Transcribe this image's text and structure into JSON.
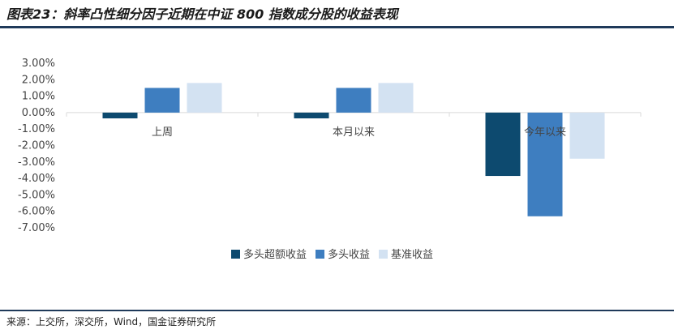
{
  "title": "图表23：斜率凸性细分因子近期在中证 800 指数成分股的收益表现",
  "source": "来源：上交所，深交所，Wind，国金证券研究所",
  "colors": {
    "rule": "#1f3a5a",
    "axis": "#d9d9d9"
  },
  "chart_data": {
    "type": "bar",
    "categories": [
      "上周",
      "本月以来",
      "今年以来"
    ],
    "series": [
      {
        "name": "多头超额收益",
        "color": "#0d4a6f",
        "values": [
          -0.35,
          -0.35,
          -3.85
        ]
      },
      {
        "name": "多头收益",
        "color": "#3e7ec0",
        "values": [
          1.5,
          1.5,
          -6.3
        ]
      },
      {
        "name": "基准收益",
        "color": "#d3e2f2",
        "values": [
          1.8,
          1.8,
          -2.8
        ]
      }
    ],
    "yticks": [
      "3.00%",
      "2.00%",
      "1.00%",
      "0.00%",
      "-1.00%",
      "-2.00%",
      "-3.00%",
      "-4.00%",
      "-5.00%",
      "-6.00%",
      "-7.00%"
    ],
    "ylim": [
      -7,
      3
    ],
    "grid": false,
    "legend": "bottom"
  }
}
